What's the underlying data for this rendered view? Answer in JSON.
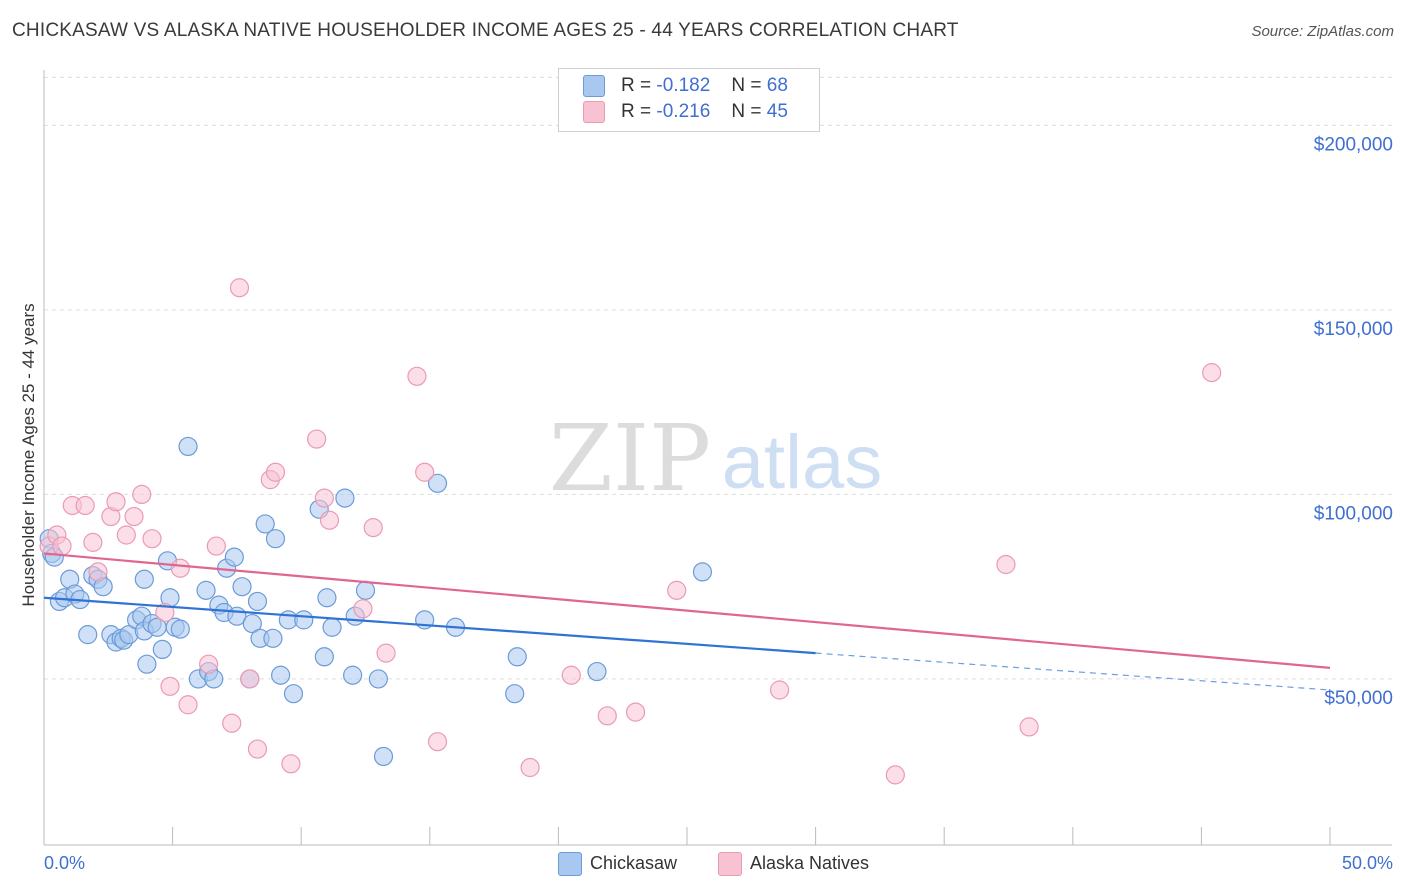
{
  "header": {
    "title": "CHICKASAW VS ALASKA NATIVE HOUSEHOLDER INCOME AGES 25 - 44 YEARS CORRELATION CHART",
    "source": "Source: ZipAtlas.com"
  },
  "watermark": {
    "zip": "ZIP",
    "atlas": "atlas"
  },
  "legend": {
    "series1": {
      "r_label": "R =",
      "r_value": "-0.182",
      "n_label": "N =",
      "n_value": "68"
    },
    "series2": {
      "r_label": "R =",
      "r_value": "-0.216",
      "n_label": "N =",
      "n_value": "45"
    }
  },
  "colors": {
    "chickasaw_fill": "#a9c8f0",
    "chickasaw_stroke": "#6b9bd8",
    "chickasaw_line": "#2f73d6",
    "alaska_fill": "#f7c3d3",
    "alaska_stroke": "#eb9ab4",
    "alaska_line": "#e0668f",
    "axis_label": "#3f6fd1"
  },
  "chart_data": {
    "type": "scatter",
    "title": "CHICKASAW VS ALASKA NATIVE HOUSEHOLDER INCOME AGES 25 - 44 YEARS CORRELATION CHART",
    "xlabel": "",
    "ylabel": "Householder Income Ages 25 - 44 years",
    "xlim": [
      0,
      50
    ],
    "ylim": [
      5000,
      215000
    ],
    "x_tick_labels": [
      "0.0%",
      "50.0%"
    ],
    "y_ticks": [
      50000,
      100000,
      150000,
      200000
    ],
    "y_tick_labels": [
      "$50,000",
      "$100,000",
      "$150,000",
      "$200,000"
    ],
    "grid": true,
    "legend_position": "top-center",
    "series": [
      {
        "name": "Chickasaw",
        "r": -0.182,
        "n": 68,
        "trend": {
          "x0": 0,
          "y0": 72000,
          "x1": 30,
          "y1": 57000,
          "dashed_to_x": 50,
          "dashed_to_y": 47000
        },
        "points": [
          [
            0.2,
            88000
          ],
          [
            0.3,
            84000
          ],
          [
            0.4,
            83000
          ],
          [
            0.6,
            71000
          ],
          [
            0.8,
            72000
          ],
          [
            1.0,
            77000
          ],
          [
            1.2,
            73000
          ],
          [
            1.4,
            71500
          ],
          [
            1.7,
            62000
          ],
          [
            1.9,
            78000
          ],
          [
            2.1,
            77000
          ],
          [
            2.3,
            75000
          ],
          [
            2.6,
            62000
          ],
          [
            2.8,
            60000
          ],
          [
            3.0,
            61000
          ],
          [
            3.1,
            60500
          ],
          [
            3.3,
            62000
          ],
          [
            3.6,
            66000
          ],
          [
            3.8,
            67000
          ],
          [
            3.9,
            63000
          ],
          [
            3.9,
            77000
          ],
          [
            4.0,
            54000
          ],
          [
            4.2,
            65000
          ],
          [
            4.4,
            64000
          ],
          [
            4.6,
            58000
          ],
          [
            4.8,
            82000
          ],
          [
            4.9,
            72000
          ],
          [
            5.1,
            64000
          ],
          [
            5.3,
            63500
          ],
          [
            5.6,
            113000
          ],
          [
            6.0,
            50000
          ],
          [
            6.3,
            74000
          ],
          [
            6.4,
            52000
          ],
          [
            6.6,
            50000
          ],
          [
            6.8,
            70000
          ],
          [
            7.0,
            68000
          ],
          [
            7.1,
            80000
          ],
          [
            7.4,
            83000
          ],
          [
            7.5,
            67000
          ],
          [
            7.7,
            75000
          ],
          [
            8.0,
            50000
          ],
          [
            8.1,
            65000
          ],
          [
            8.3,
            71000
          ],
          [
            8.4,
            61000
          ],
          [
            8.6,
            92000
          ],
          [
            8.9,
            61000
          ],
          [
            9.0,
            88000
          ],
          [
            9.2,
            51000
          ],
          [
            9.5,
            66000
          ],
          [
            9.7,
            46000
          ],
          [
            10.1,
            66000
          ],
          [
            10.7,
            96000
          ],
          [
            10.9,
            56000
          ],
          [
            11.0,
            72000
          ],
          [
            11.2,
            64000
          ],
          [
            11.7,
            99000
          ],
          [
            12.0,
            51000
          ],
          [
            12.1,
            67000
          ],
          [
            12.5,
            74000
          ],
          [
            13.0,
            50000
          ],
          [
            13.2,
            29000
          ],
          [
            14.8,
            66000
          ],
          [
            15.3,
            103000
          ],
          [
            16.0,
            64000
          ],
          [
            18.3,
            46000
          ],
          [
            18.4,
            56000
          ],
          [
            21.5,
            52000
          ],
          [
            25.6,
            79000
          ]
        ]
      },
      {
        "name": "Alaska Natives",
        "r": -0.216,
        "n": 45,
        "trend": {
          "x0": 0,
          "y0": 84000,
          "x1": 50,
          "y1": 53000
        },
        "points": [
          [
            0.2,
            86000
          ],
          [
            0.5,
            89000
          ],
          [
            0.7,
            86000
          ],
          [
            1.1,
            97000
          ],
          [
            1.6,
            97000
          ],
          [
            1.9,
            87000
          ],
          [
            2.1,
            79000
          ],
          [
            2.6,
            94000
          ],
          [
            2.8,
            98000
          ],
          [
            3.2,
            89000
          ],
          [
            3.5,
            94000
          ],
          [
            3.8,
            100000
          ],
          [
            4.2,
            88000
          ],
          [
            4.7,
            68000
          ],
          [
            4.9,
            48000
          ],
          [
            5.3,
            80000
          ],
          [
            5.6,
            43000
          ],
          [
            6.4,
            54000
          ],
          [
            6.7,
            86000
          ],
          [
            7.3,
            38000
          ],
          [
            7.6,
            156000
          ],
          [
            8.0,
            50000
          ],
          [
            8.3,
            31000
          ],
          [
            8.8,
            104000
          ],
          [
            9.0,
            106000
          ],
          [
            9.6,
            27000
          ],
          [
            10.6,
            115000
          ],
          [
            10.9,
            99000
          ],
          [
            11.1,
            93000
          ],
          [
            12.4,
            69000
          ],
          [
            12.8,
            91000
          ],
          [
            13.3,
            57000
          ],
          [
            14.5,
            132000
          ],
          [
            14.8,
            106000
          ],
          [
            15.3,
            33000
          ],
          [
            18.9,
            26000
          ],
          [
            20.5,
            51000
          ],
          [
            21.9,
            40000
          ],
          [
            23.0,
            41000
          ],
          [
            24.6,
            74000
          ],
          [
            28.6,
            47000
          ],
          [
            33.1,
            24000
          ],
          [
            37.4,
            81000
          ],
          [
            38.3,
            37000
          ],
          [
            45.4,
            133000
          ]
        ]
      }
    ]
  },
  "bottom_legend": {
    "item1": "Chickasaw",
    "item2": "Alaska Natives"
  }
}
